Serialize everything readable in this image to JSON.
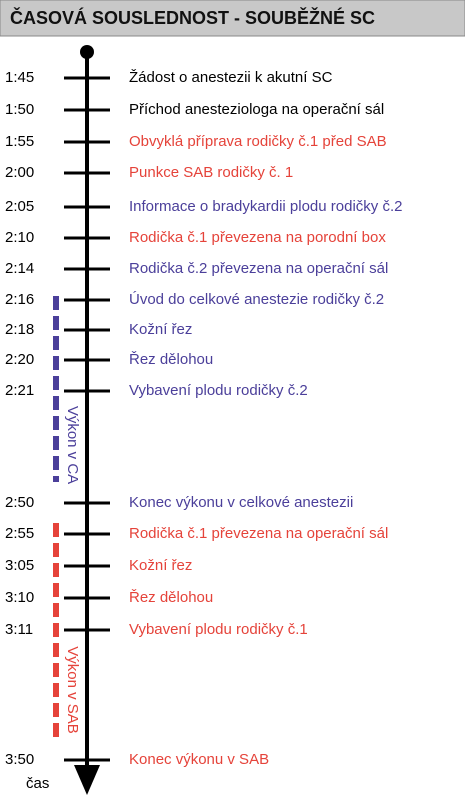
{
  "title": "ČASOVÁ SOUSLEDNOST - SOUBĚŽNÉ SC",
  "axis_label": "čas",
  "events": [
    {
      "time": "1:45",
      "label": "Žádost o anestezii k akutní SC",
      "color": "#000000"
    },
    {
      "time": "1:50",
      "label": "Příchod anesteziologa na operační sál",
      "color": "#000000"
    },
    {
      "time": "1:55",
      "label": "Obvyklá příprava rodičky č.1 před SAB",
      "color": "#e5433a"
    },
    {
      "time": "2:00",
      "label": "Punkce SAB rodičky č. 1",
      "color": "#e5433a"
    },
    {
      "time": "2:05",
      "label": "Informace o bradykardii plodu rodičky č.2",
      "color": "#4b3f9a"
    },
    {
      "time": "2:10",
      "label": "Rodička č.1 převezena na porodní box",
      "color": "#e5433a"
    },
    {
      "time": "2:14",
      "label": "Rodička č.2 převezena na operační sál",
      "color": "#4b3f9a"
    },
    {
      "time": "2:16",
      "label": "Úvod do celkové anestezie rodičky č.2",
      "color": "#4b3f9a"
    },
    {
      "time": "2:18",
      "label": "Kožní řez",
      "color": "#4b3f9a"
    },
    {
      "time": "2:20",
      "label": "Řez dělohou",
      "color": "#4b3f9a"
    },
    {
      "time": "2:21",
      "label": "Vybavení plodu rodičky č.2",
      "color": "#4b3f9a"
    },
    {
      "time": "2:50",
      "label": "Konec výkonu v celkové anestezii",
      "color": "#4b3f9a"
    },
    {
      "time": "2:55",
      "label": "Rodička č.1 převezena na operační sál",
      "color": "#e5433a"
    },
    {
      "time": "3:05",
      "label": "Kožní řez",
      "color": "#e5433a"
    },
    {
      "time": "3:10",
      "label": "Řez dělohou",
      "color": "#e5433a"
    },
    {
      "time": "3:11",
      "label": "Vybavení plodu rodičky č.1",
      "color": "#e5433a"
    },
    {
      "time": "3:50",
      "label": "Konec výkonu v SAB",
      "color": "#e5433a"
    }
  ],
  "phases": [
    {
      "label": "Výkon v CA",
      "color": "#4b3f9a"
    },
    {
      "label": "Výkon v SAB",
      "color": "#e5433a"
    }
  ]
}
